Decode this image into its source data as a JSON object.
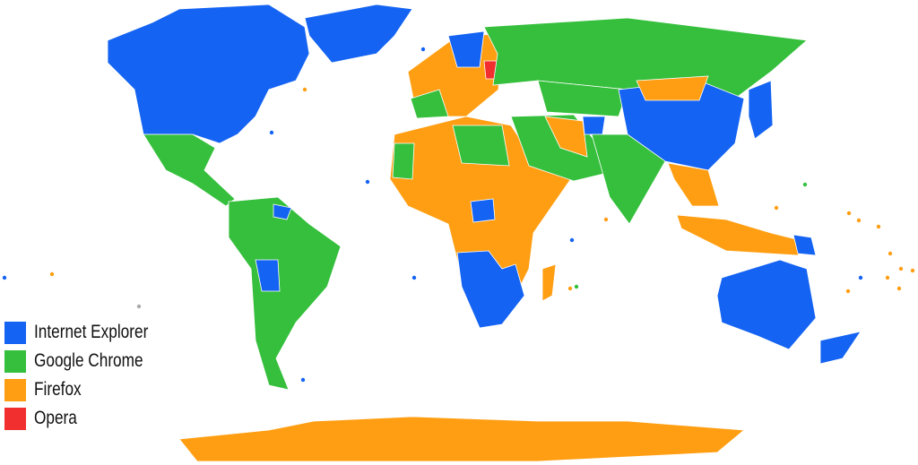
{
  "colors": {
    "internet_explorer": "#1463f2",
    "google_chrome": "#35bf3c",
    "firefox": "#ff9e12",
    "opera": "#f22f2f"
  },
  "legend": [
    {
      "label": "Internet Explorer",
      "color": "#1463f2"
    },
    {
      "label": "Google Chrome",
      "color": "#35bf3c"
    },
    {
      "label": "Firefox",
      "color": "#ff9e12"
    },
    {
      "label": "Opera",
      "color": "#f22f2f"
    }
  ]
}
